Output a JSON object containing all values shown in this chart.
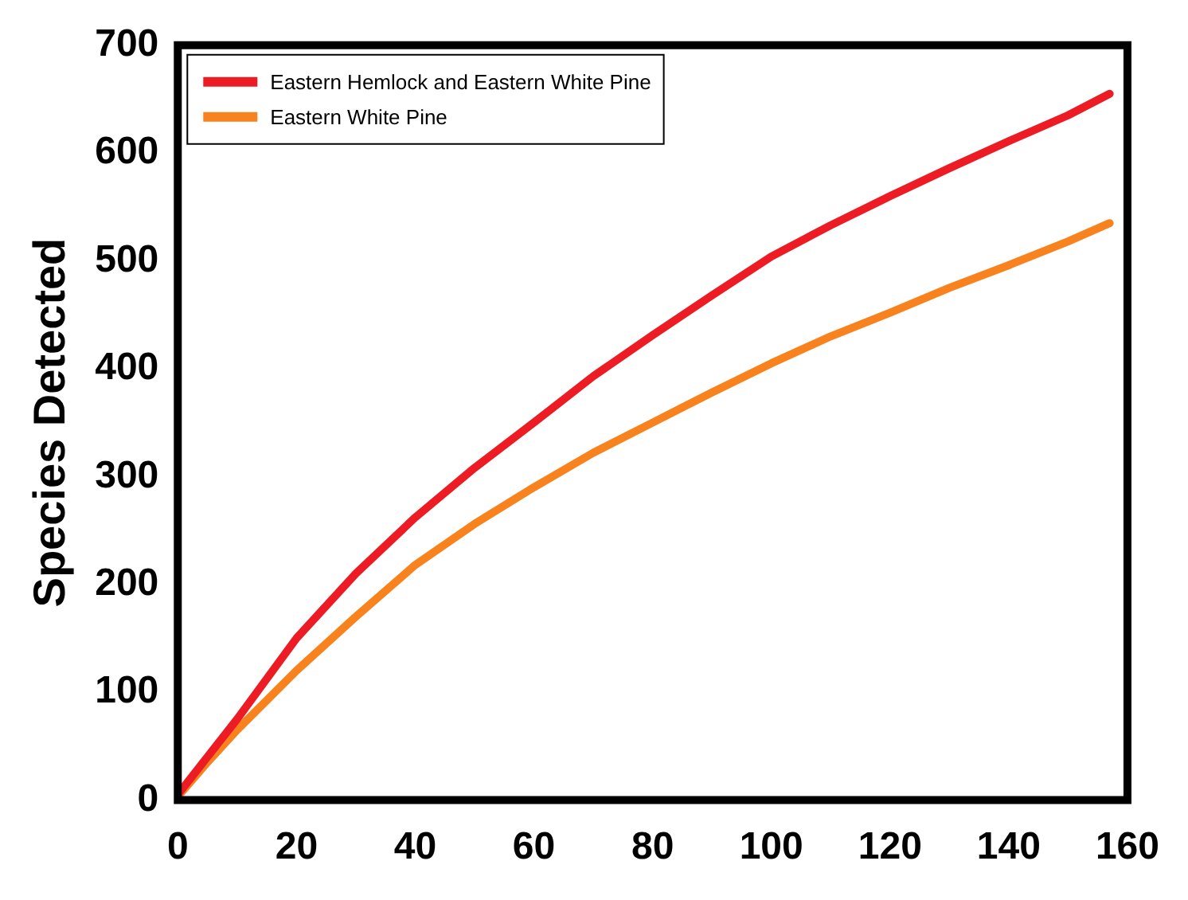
{
  "chart_data": {
    "type": "line",
    "ylabel": "Species Detected",
    "xlim": [
      0,
      160
    ],
    "xticks": [
      0,
      20,
      40,
      60,
      80,
      100,
      120,
      140,
      160
    ],
    "ylim": [
      0,
      700
    ],
    "yticks": [
      0,
      100,
      200,
      300,
      400,
      500,
      600,
      700
    ],
    "grid": false,
    "legend": "top left",
    "marker": "none",
    "line_style": "solid",
    "series": [
      {
        "name": "Eastern Hemlock and Eastern White Pine",
        "color": "#ed1c24",
        "x": [
          0,
          5,
          10,
          20,
          30,
          40,
          50,
          60,
          70,
          80,
          90,
          100,
          110,
          120,
          130,
          140,
          150,
          157
        ],
        "values": [
          5,
          40,
          75,
          150,
          210,
          262,
          308,
          350,
          393,
          431,
          468,
          504,
          533,
          560,
          586,
          611,
          635,
          655
        ]
      },
      {
        "name": "Eastern White Pine",
        "color": "#f7821e",
        "x": [
          0,
          5,
          10,
          20,
          30,
          40,
          50,
          60,
          70,
          80,
          90,
          100,
          110,
          120,
          130,
          140,
          150,
          157
        ],
        "values": [
          3,
          35,
          65,
          120,
          170,
          218,
          256,
          290,
          322,
          350,
          378,
          405,
          430,
          452,
          475,
          496,
          518,
          535
        ]
      }
    ]
  }
}
